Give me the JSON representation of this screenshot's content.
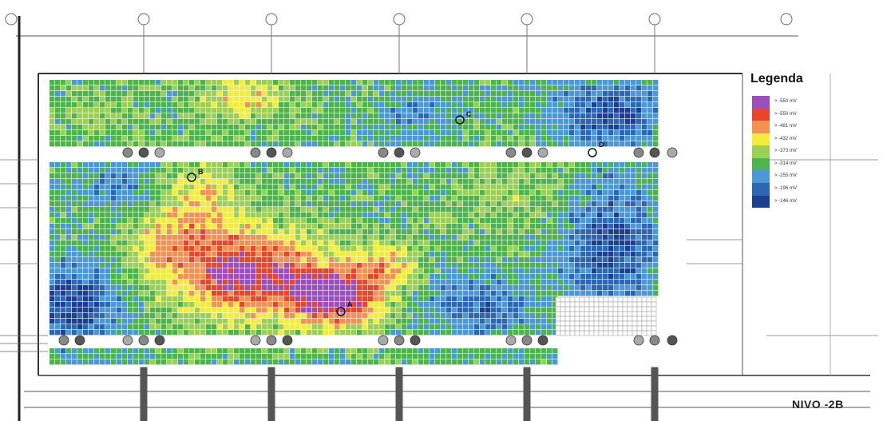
{
  "legend": {
    "title": "Legenda",
    "entries": [
      {
        "label": "> -550 mV",
        "color": "#9b4fb8"
      },
      {
        "label": "> -550 mV",
        "color": "#e8452a"
      },
      {
        "label": "> -481 mV",
        "color": "#f29152"
      },
      {
        "label": "> -432 mV",
        "color": "#f3ec3e"
      },
      {
        "label": "> -373 mV",
        "color": "#9ccf55"
      },
      {
        "label": "> -314 mV",
        "color": "#4db34c"
      },
      {
        "label": "> -255 mV",
        "color": "#4a98d6"
      },
      {
        "label": "> -196 mV",
        "color": "#2b67b3"
      },
      {
        "label": "> -146 mV",
        "color": "#1d3f8f"
      }
    ]
  },
  "level_label": "NIVO -2B",
  "markers": [
    {
      "letter": "B"
    },
    {
      "letter": "C"
    },
    {
      "letter": "D"
    },
    {
      "letter": "A"
    }
  ]
}
